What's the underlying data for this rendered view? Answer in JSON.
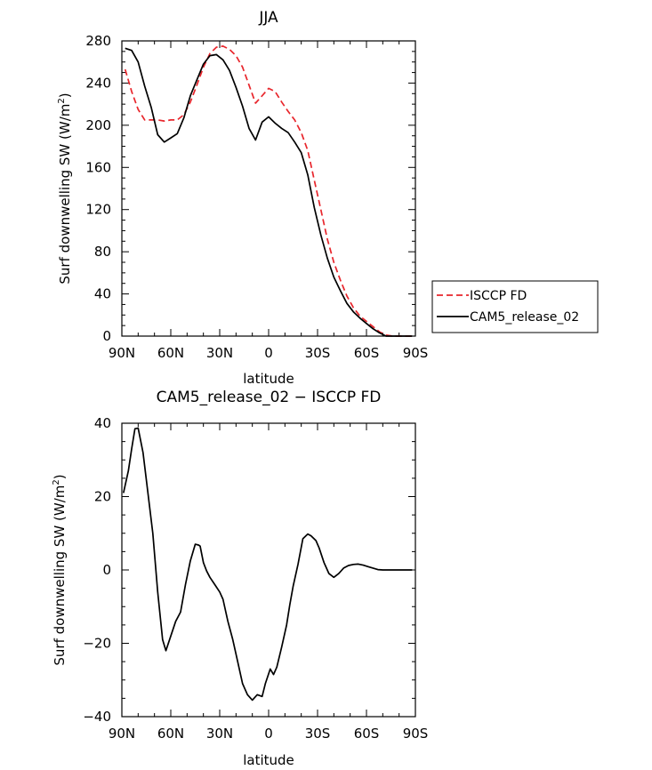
{
  "chart_data": [
    {
      "type": "line",
      "title": "JJA",
      "xlabel": "latitude",
      "ylabel": "Surf downwelling SW (W/m²)",
      "ylabel_parts": {
        "before": "Surf downwelling SW (W/m",
        "sup": "2",
        "after": ")"
      },
      "xlim": [
        90,
        -90
      ],
      "ylim": [
        0,
        280
      ],
      "x_ticks": [
        90,
        60,
        30,
        0,
        -30,
        -60,
        -90
      ],
      "x_tick_labels": [
        "90N",
        "60N",
        "30N",
        "0",
        "30S",
        "60S",
        "90S"
      ],
      "y_ticks": [
        0,
        40,
        80,
        120,
        160,
        200,
        240,
        280
      ],
      "y_tick_labels": [
        "0",
        "40",
        "80",
        "120",
        "160",
        "200",
        "240",
        "280"
      ],
      "legend_position": "right",
      "series": [
        {
          "name": "ISCCP FD",
          "color": "#e8262c",
          "dash": "dashed",
          "x": [
            88,
            84,
            80,
            76,
            72,
            68,
            64,
            60,
            56,
            52,
            48,
            44,
            40,
            36,
            32,
            28,
            24,
            20,
            16,
            12,
            8,
            4,
            0,
            -4,
            -8,
            -12,
            -16,
            -20,
            -24,
            -28,
            -32,
            -36,
            -40,
            -44,
            -48,
            -52,
            -56,
            -60,
            -64,
            -68,
            -72,
            -76,
            -80,
            -84,
            -88
          ],
          "y": [
            253,
            232,
            215,
            205,
            205,
            205,
            204,
            205,
            205,
            210,
            222,
            238,
            255,
            268,
            274,
            275,
            272,
            266,
            255,
            238,
            221,
            228,
            235,
            232,
            222,
            213,
            205,
            193,
            176,
            148,
            120,
            92,
            70,
            53,
            38,
            27,
            19,
            14,
            9,
            4,
            1,
            0,
            0,
            0,
            0
          ]
        },
        {
          "name": "CAM5_release_02",
          "color": "#000000",
          "dash": "solid",
          "x": [
            88,
            84,
            80,
            76,
            72,
            68,
            64,
            60,
            56,
            52,
            48,
            44,
            40,
            36,
            32,
            28,
            24,
            20,
            16,
            12,
            8,
            4,
            0,
            -4,
            -8,
            -12,
            -16,
            -20,
            -24,
            -28,
            -32,
            -36,
            -40,
            -44,
            -48,
            -52,
            -56,
            -60,
            -64,
            -68,
            -72,
            -76,
            -80,
            -84,
            -88
          ],
          "y": [
            273,
            271,
            260,
            237,
            217,
            191,
            184,
            188,
            192,
            207,
            228,
            243,
            258,
            266,
            267,
            262,
            252,
            236,
            218,
            197,
            186,
            203,
            208,
            202,
            197,
            193,
            184,
            174,
            153,
            122,
            96,
            74,
            56,
            43,
            31,
            23,
            17,
            12,
            7,
            3,
            0,
            0,
            0,
            0,
            0
          ]
        }
      ]
    },
    {
      "type": "line",
      "title": "CAM5_release_02 − ISCCP FD",
      "xlabel": "latitude",
      "ylabel": "Surf downwelling SW (W/m²)",
      "ylabel_parts": {
        "before": "Surf downwelling SW (W/m",
        "sup": "2",
        "after": ")"
      },
      "xlim": [
        90,
        -90
      ],
      "ylim": [
        -40,
        40
      ],
      "x_ticks": [
        90,
        60,
        30,
        0,
        -30,
        -60,
        -90
      ],
      "x_tick_labels": [
        "90N",
        "60N",
        "30N",
        "0",
        "30S",
        "60S",
        "90S"
      ],
      "y_ticks": [
        -40,
        -20,
        0,
        20,
        40
      ],
      "y_tick_labels": [
        "−40",
        "−20",
        "0",
        "20",
        "40"
      ],
      "series": [
        {
          "name": "",
          "color": "#000000",
          "dash": "solid",
          "x": [
            89,
            86,
            84,
            82,
            80,
            77,
            74,
            71,
            68,
            65,
            63,
            60,
            57,
            54,
            51,
            48,
            45,
            43,
            42,
            40,
            38,
            36,
            33,
            30,
            28,
            25,
            22,
            19,
            16,
            13,
            10,
            7,
            4,
            2,
            -1,
            -3,
            -5,
            -8,
            -11,
            -13,
            -15,
            -18,
            -21,
            -24,
            -26,
            -29,
            -31,
            -34,
            -37,
            -40,
            -43,
            -46,
            -49,
            -52,
            -55,
            -58,
            -61,
            -64,
            -67,
            -70,
            -73,
            -76,
            -79,
            -82,
            -85,
            -88
          ],
          "y": [
            21,
            27,
            33,
            38.5,
            38.7,
            32,
            21,
            10,
            -6,
            -19,
            -22,
            -18,
            -14,
            -11.5,
            -4,
            2.5,
            7,
            6.8,
            6.5,
            2,
            -0.3,
            -2,
            -4,
            -6,
            -8,
            -14,
            -19,
            -25,
            -31,
            -34,
            -35.5,
            -34,
            -34.5,
            -31,
            -27,
            -28.5,
            -26.5,
            -21,
            -15,
            -9.5,
            -4.5,
            1.5,
            8.5,
            9.8,
            9.3,
            8,
            6,
            2,
            -1,
            -2,
            -1,
            0.5,
            1.2,
            1.5,
            1.6,
            1.3,
            0.9,
            0.5,
            0.1,
            0,
            0,
            0,
            0,
            0,
            0,
            0
          ]
        }
      ]
    }
  ]
}
